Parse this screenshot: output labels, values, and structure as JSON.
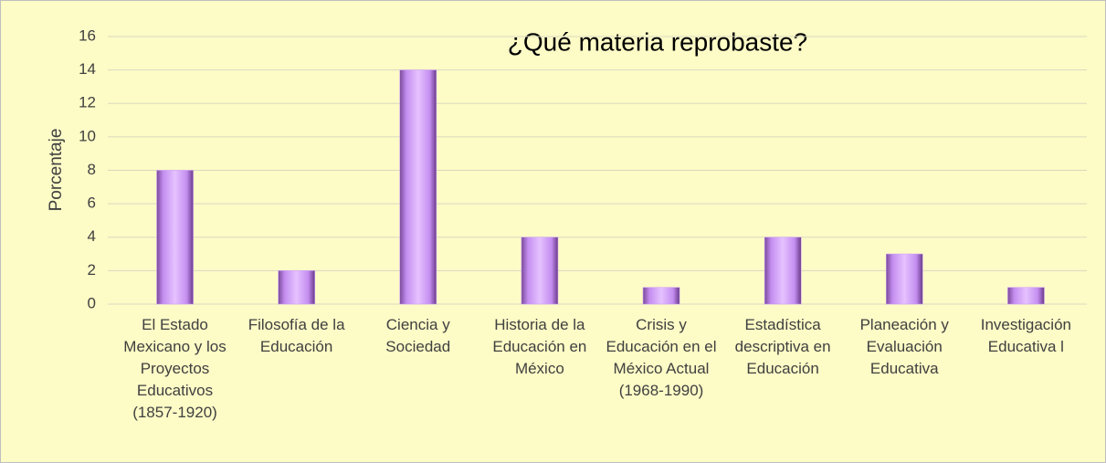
{
  "chart_data": {
    "type": "bar",
    "title": "¿Qué materia reprobaste?",
    "y_label": "Porcentaje",
    "categories": [
      "El Estado Mexicano y los Proyectos Educativos (1857-1920)",
      "Filosofía de la Educación",
      "Ciencia y Sociedad",
      "Historia de la Educación en México",
      "Crisis y Educación en el México Actual (1968-1990)",
      "Estadística descriptiva en Educación",
      "Planeación y Evaluación Educativa",
      "Investigación Educativa l"
    ],
    "values": [
      8,
      2,
      14,
      4,
      1,
      4,
      3,
      1
    ],
    "color": "#cc99ff",
    "ylim": [
      0,
      16
    ],
    "yticks": [
      0,
      2,
      4,
      6,
      8,
      10,
      12,
      14,
      16
    ],
    "grid": true
  }
}
